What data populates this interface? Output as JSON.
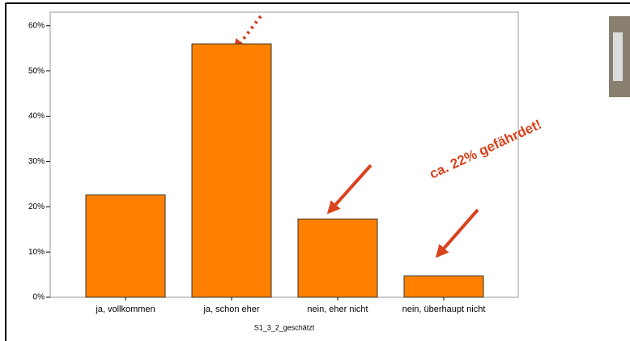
{
  "chart_data": {
    "type": "bar",
    "categories": [
      "ja, vollkommen",
      "ja, schon eher",
      "nein, eher nicht",
      "nein, überhaupt nicht"
    ],
    "values": [
      22.6,
      56,
      17.3,
      4.7
    ],
    "color": "#ff8000",
    "xlabel": "S1_3_2_geschätzt",
    "annotation": "ca. 22% gefährdet!",
    "ylim": [
      0,
      63
    ],
    "yticks": [
      {
        "value": 0,
        "label": "0%"
      },
      {
        "value": 10,
        "label": "10%"
      },
      {
        "value": 20,
        "label": "20%"
      },
      {
        "value": 30,
        "label": "30%"
      },
      {
        "value": 40,
        "label": "40%"
      },
      {
        "value": 50,
        "label": "50%"
      },
      {
        "value": 60,
        "label": "60%"
      }
    ]
  }
}
